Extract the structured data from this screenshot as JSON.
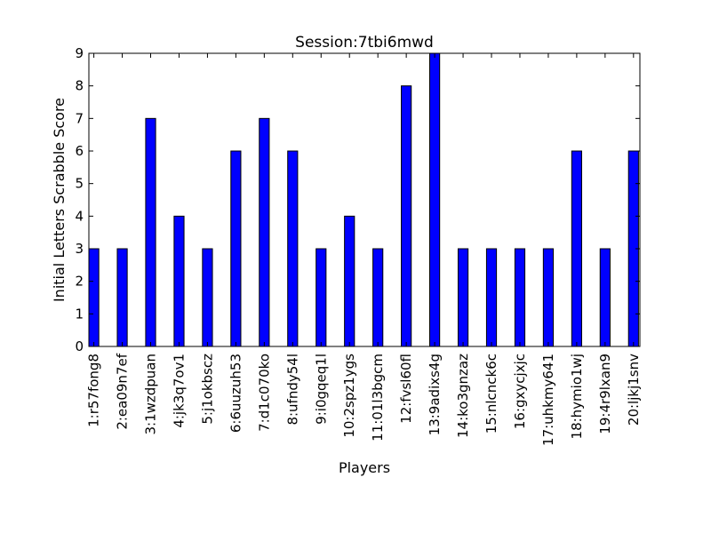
{
  "chart_data": {
    "type": "bar",
    "title": "Session:7tbi6mwd",
    "xlabel": "Players",
    "ylabel": "Initial Letters Scrabble Score",
    "ylim": [
      0,
      9
    ],
    "yticks": [
      0,
      1,
      2,
      3,
      4,
      5,
      6,
      7,
      8,
      9
    ],
    "grid": false,
    "bar_color": "#0000ff",
    "categories": [
      "1:r57fong8",
      "2:ea09n7ef",
      "3:1wzdpuan",
      "4:jk3q7ov1",
      "5:j1okbscz",
      "6:6uuzuh53",
      "7:d1c070ko",
      "8:ufndy54l",
      "9:i0gqeq1l",
      "10:2spz1ygs",
      "11:01l3bgcm",
      "12:fvsl60fl",
      "13:9adixs4g",
      "14:ko3gnzaz",
      "15:nlcnck6c",
      "16:gxycjxjc",
      "17:uhkmy641",
      "18:hymio1wj",
      "19:4r9lxan9",
      "20:ljkj1snv"
    ],
    "values": [
      3,
      3,
      7,
      4,
      3,
      6,
      7,
      6,
      3,
      4,
      3,
      8,
      9,
      3,
      3,
      3,
      3,
      6,
      3,
      6
    ]
  }
}
